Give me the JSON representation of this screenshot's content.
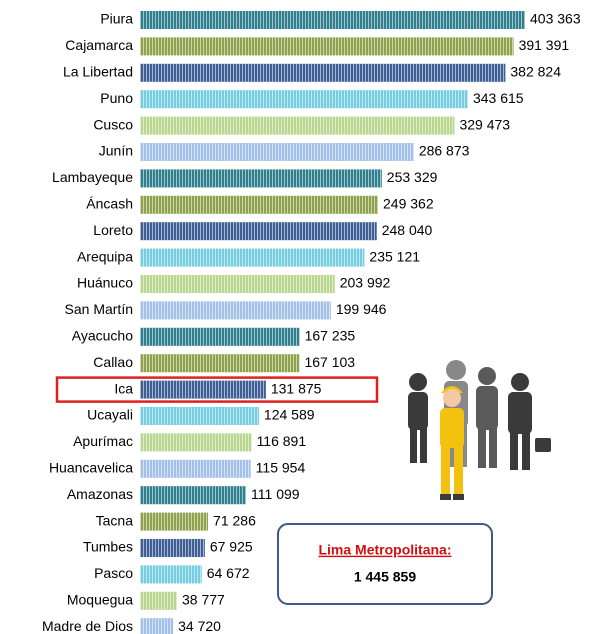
{
  "chart_data": {
    "type": "bar",
    "orientation": "horizontal",
    "categories": [
      "Piura",
      "Cajamarca",
      "La Libertad",
      "Puno",
      "Cusco",
      "Junín",
      "Lambayeque",
      "Áncash",
      "Loreto",
      "Arequipa",
      "Huánuco",
      "San Martín",
      "Ayacucho",
      "Callao",
      "Ica",
      "Ucayali",
      "Apurímac",
      "Huancavelica",
      "Amazonas",
      "Tacna",
      "Tumbes",
      "Pasco",
      "Moquegua",
      "Madre de Dios"
    ],
    "values": [
      403363,
      391391,
      382824,
      343615,
      329473,
      286873,
      253329,
      249362,
      248040,
      235121,
      203992,
      199946,
      167235,
      167103,
      131875,
      124589,
      116891,
      115954,
      111099,
      71286,
      67925,
      64672,
      38777,
      34720
    ],
    "value_labels": [
      "403 363",
      "391 391",
      "382 824",
      "343 615",
      "329 473",
      "286 873",
      "253 329",
      "249 362",
      "248 040",
      "235 121",
      "203 992",
      "199 946",
      "167 235",
      "167 103",
      "131 875",
      "124 589",
      "116 891",
      "115 954",
      "111 099",
      "71 286",
      "67 925",
      "64 672",
      "38 777",
      "34 720"
    ],
    "colors": [
      "#2f7f8e",
      "#8ea24c",
      "#3d5f95",
      "#74cde0",
      "#b8d68e",
      "#a2c0e8"
    ],
    "highlight": "Ica",
    "highlight_color": "#e02020",
    "annotation": {
      "title": "Lima Metropolitana:",
      "value": 1445859,
      "value_label": "1 445 859"
    }
  }
}
